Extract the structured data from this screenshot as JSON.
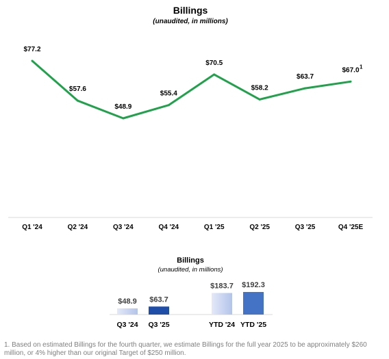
{
  "colors": {
    "line": "#1fa34a",
    "axis": "#d9d9d9",
    "bar_q3_24": "#c7d3f1",
    "bar_q3_25": "#1f4ea8",
    "bar_ytd_24": "#c7d3f1",
    "bar_ytd_25": "#4472c4"
  },
  "chart_data": [
    {
      "type": "line",
      "title": "Billings",
      "subtitle": "(unaudited, in millions)",
      "categories": [
        "Q1 '24",
        "Q2 '24",
        "Q3 '24",
        "Q4 '24",
        "Q1 '25",
        "Q2 '25",
        "Q3 '25",
        "Q4 '25E"
      ],
      "series": [
        {
          "values": [
            77.2,
            57.6,
            48.9,
            55.4,
            70.5,
            58.2,
            63.7,
            67.0
          ]
        }
      ],
      "data_labels": [
        "$77.2",
        "$57.6",
        "$48.9",
        "$55.4",
        "$70.5",
        "$58.2",
        "$63.7",
        "$67.0"
      ],
      "footnote_marker": "1",
      "footnote_marker_index": 7,
      "ylim": [
        0,
        100
      ],
      "grid": false
    },
    {
      "type": "bar",
      "title": "Billings",
      "subtitle": "(unaudited, in millions)",
      "categories": [
        "Q3 '24",
        "Q3 '25",
        "YTD '24",
        "YTD '25"
      ],
      "values": [
        48.9,
        63.7,
        183.7,
        192.3
      ],
      "data_labels": [
        "$48.9",
        "$63.7",
        "$183.7",
        "$192.3"
      ],
      "grid": false
    }
  ],
  "footnote": "1. Based on estimated Billings for the fourth quarter, we estimate Billings for the full year 2025 to be approximately $260 million, or 4% higher than our original Target of $250 million."
}
